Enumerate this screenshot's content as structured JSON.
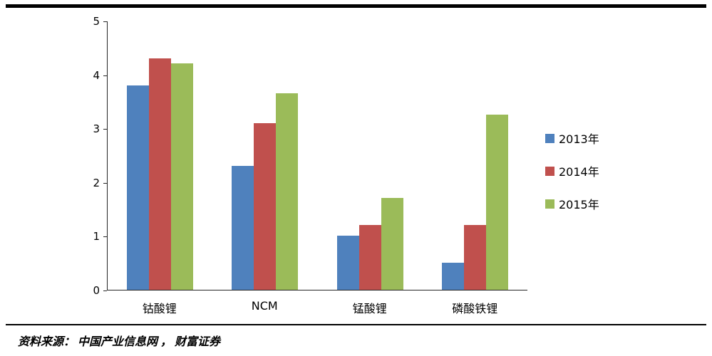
{
  "chart_data": {
    "type": "bar",
    "title": "",
    "xlabel": "",
    "ylabel": "",
    "categories": [
      "钴酸锂",
      "NCM",
      "锰酸锂",
      "磷酸铁锂"
    ],
    "series": [
      {
        "name": "2013年",
        "color": "#4F81BD",
        "values": [
          3.8,
          2.3,
          1.0,
          0.5
        ]
      },
      {
        "name": "2014年",
        "color": "#C0504D",
        "values": [
          4.3,
          3.1,
          1.2,
          1.2
        ]
      },
      {
        "name": "2015年",
        "color": "#9BBB59",
        "values": [
          4.2,
          3.65,
          1.7,
          3.25
        ]
      }
    ],
    "ylim": [
      0,
      5
    ],
    "yticks": [
      0,
      1,
      2,
      3,
      4,
      5
    ],
    "grid": false,
    "legend_position": "right"
  },
  "source": {
    "text": "资料来源： 中国产业信息网 ， 财富证券"
  }
}
